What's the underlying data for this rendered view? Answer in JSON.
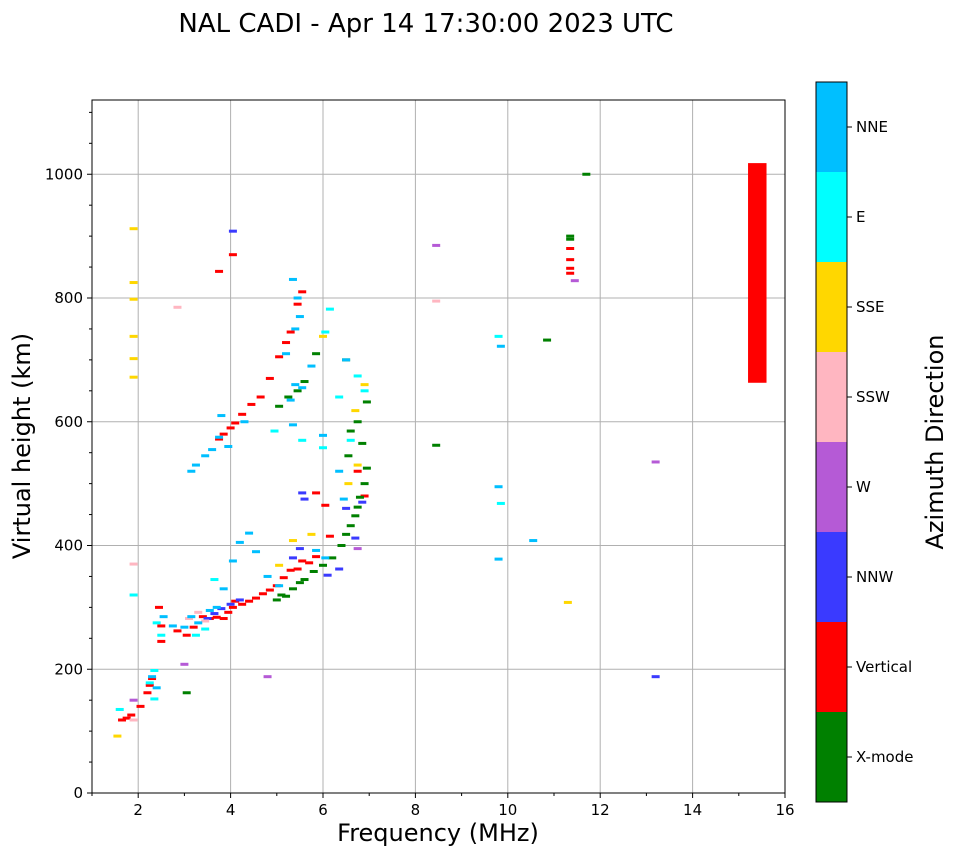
{
  "chart_data": {
    "type": "scatter",
    "title": "NAL CADI - Apr 14 17:30:00 2023 UTC",
    "xlabel": "Frequency (MHz)",
    "ylabel": "Virtual height (km)",
    "xlim": [
      1,
      16
    ],
    "ylim": [
      0,
      1120
    ],
    "xticks": [
      2,
      4,
      6,
      8,
      10,
      12,
      14,
      16
    ],
    "yticks": [
      0,
      200,
      400,
      600,
      800,
      1000
    ],
    "grid": true,
    "colorbar": {
      "label": "Azimuth Direction",
      "categories": [
        {
          "name": "X-mode",
          "color": "#008000"
        },
        {
          "name": "Vertical",
          "color": "#ff0000"
        },
        {
          "name": "NNW",
          "color": "#3a3aff"
        },
        {
          "name": "W",
          "color": "#b55ad6"
        },
        {
          "name": "SSW",
          "color": "#ffb6c1"
        },
        {
          "name": "SSE",
          "color": "#ffd700"
        },
        {
          "name": "E",
          "color": "#00ffff"
        },
        {
          "name": "NNE",
          "color": "#00bfff"
        }
      ]
    },
    "highlight_bar": {
      "x_range": [
        15.2,
        15.6
      ],
      "y_range": [
        663,
        1018
      ],
      "color": "#ff0000"
    },
    "series": [
      {
        "name": "Vertical",
        "points": [
          [
            1.65,
            118
          ],
          [
            1.75,
            121
          ],
          [
            1.85,
            126
          ],
          [
            2.05,
            140
          ],
          [
            2.2,
            162
          ],
          [
            2.25,
            174
          ],
          [
            2.3,
            185
          ],
          [
            2.45,
            300
          ],
          [
            2.5,
            270
          ],
          [
            2.5,
            245
          ],
          [
            2.85,
            262
          ],
          [
            3.05,
            255
          ],
          [
            3.2,
            268
          ],
          [
            3.4,
            285
          ],
          [
            3.55,
            282
          ],
          [
            3.7,
            284
          ],
          [
            3.85,
            282
          ],
          [
            3.95,
            292
          ],
          [
            4.05,
            300
          ],
          [
            4.1,
            310
          ],
          [
            4.25,
            305
          ],
          [
            4.4,
            310
          ],
          [
            4.55,
            315
          ],
          [
            4.7,
            322
          ],
          [
            4.85,
            328
          ],
          [
            5.0,
            335
          ],
          [
            5.15,
            348
          ],
          [
            5.3,
            360
          ],
          [
            5.45,
            362
          ],
          [
            5.55,
            375
          ],
          [
            5.7,
            372
          ],
          [
            5.85,
            382
          ],
          [
            3.75,
            572
          ],
          [
            3.85,
            580
          ],
          [
            4.0,
            590
          ],
          [
            4.1,
            598
          ],
          [
            4.25,
            612
          ],
          [
            4.45,
            628
          ],
          [
            4.65,
            640
          ],
          [
            4.85,
            670
          ],
          [
            5.05,
            705
          ],
          [
            5.2,
            728
          ],
          [
            5.3,
            745
          ],
          [
            5.45,
            790
          ],
          [
            5.55,
            810
          ],
          [
            3.75,
            843
          ],
          [
            4.05,
            870
          ],
          [
            5.85,
            485
          ],
          [
            6.05,
            465
          ],
          [
            6.15,
            415
          ],
          [
            6.75,
            520
          ],
          [
            6.9,
            480
          ],
          [
            11.35,
            880
          ],
          [
            11.35,
            862
          ],
          [
            11.35,
            848
          ],
          [
            11.35,
            840
          ]
        ]
      },
      {
        "name": "X-mode",
        "points": [
          [
            5.0,
            312
          ],
          [
            5.1,
            320
          ],
          [
            5.2,
            318
          ],
          [
            5.35,
            330
          ],
          [
            5.5,
            340
          ],
          [
            5.6,
            345
          ],
          [
            5.8,
            358
          ],
          [
            6.0,
            368
          ],
          [
            6.2,
            380
          ],
          [
            6.4,
            400
          ],
          [
            6.5,
            418
          ],
          [
            6.6,
            432
          ],
          [
            6.7,
            448
          ],
          [
            6.75,
            462
          ],
          [
            6.8,
            478
          ],
          [
            6.9,
            500
          ],
          [
            6.95,
            525
          ],
          [
            6.55,
            545
          ],
          [
            6.85,
            565
          ],
          [
            6.6,
            585
          ],
          [
            6.75,
            600
          ],
          [
            6.95,
            632
          ],
          [
            5.05,
            625
          ],
          [
            5.25,
            640
          ],
          [
            5.45,
            650
          ],
          [
            5.6,
            665
          ],
          [
            5.85,
            710
          ],
          [
            6.5,
            700
          ],
          [
            8.45,
            562
          ],
          [
            10.85,
            732
          ],
          [
            11.35,
            900
          ],
          [
            11.35,
            895
          ],
          [
            11.7,
            1000
          ],
          [
            3.05,
            162
          ]
        ]
      },
      {
        "name": "NNW",
        "points": [
          [
            3.5,
            282
          ],
          [
            3.65,
            290
          ],
          [
            3.8,
            298
          ],
          [
            4.0,
            305
          ],
          [
            4.2,
            312
          ],
          [
            5.35,
            380
          ],
          [
            5.5,
            395
          ],
          [
            5.55,
            485
          ],
          [
            5.6,
            475
          ],
          [
            6.1,
            352
          ],
          [
            6.35,
            362
          ],
          [
            6.5,
            460
          ],
          [
            6.7,
            412
          ],
          [
            6.85,
            470
          ],
          [
            4.05,
            908
          ],
          [
            13.2,
            188
          ]
        ]
      },
      {
        "name": "W",
        "points": [
          [
            3.0,
            208
          ],
          [
            4.8,
            188
          ],
          [
            8.45,
            885
          ],
          [
            11.45,
            828
          ],
          [
            13.2,
            535
          ],
          [
            6.75,
            395
          ],
          [
            1.9,
            150
          ]
        ]
      },
      {
        "name": "SSW",
        "points": [
          [
            3.1,
            282
          ],
          [
            3.3,
            292
          ],
          [
            3.45,
            278
          ],
          [
            8.45,
            795
          ],
          [
            2.85,
            785
          ],
          [
            1.9,
            370
          ],
          [
            1.9,
            118
          ]
        ]
      },
      {
        "name": "SSE",
        "points": [
          [
            1.55,
            92
          ],
          [
            1.9,
            912
          ],
          [
            1.9,
            825
          ],
          [
            1.9,
            798
          ],
          [
            1.9,
            738
          ],
          [
            1.9,
            702
          ],
          [
            1.9,
            672
          ],
          [
            5.35,
            408
          ],
          [
            5.75,
            418
          ],
          [
            5.05,
            368
          ],
          [
            6.0,
            738
          ],
          [
            6.7,
            618
          ],
          [
            6.9,
            660
          ],
          [
            11.3,
            308
          ],
          [
            6.55,
            500
          ],
          [
            6.75,
            530
          ]
        ]
      },
      {
        "name": "E",
        "points": [
          [
            1.6,
            135
          ],
          [
            2.25,
            178
          ],
          [
            2.35,
            152
          ],
          [
            2.4,
            275
          ],
          [
            2.5,
            255
          ],
          [
            3.25,
            255
          ],
          [
            3.45,
            265
          ],
          [
            6.05,
            745
          ],
          [
            6.15,
            782
          ],
          [
            6.75,
            674
          ],
          [
            6.9,
            650
          ],
          [
            6.35,
            640
          ],
          [
            6.6,
            570
          ],
          [
            9.8,
            738
          ],
          [
            9.85,
            468
          ],
          [
            6.0,
            558
          ],
          [
            4.95,
            585
          ],
          [
            5.55,
            570
          ],
          [
            1.9,
            320
          ],
          [
            2.35,
            198
          ],
          [
            3.65,
            345
          ]
        ]
      },
      {
        "name": "NNE",
        "points": [
          [
            2.3,
            188
          ],
          [
            2.4,
            170
          ],
          [
            2.55,
            285
          ],
          [
            2.75,
            270
          ],
          [
            3.0,
            268
          ],
          [
            3.15,
            285
          ],
          [
            3.3,
            275
          ],
          [
            3.55,
            295
          ],
          [
            3.7,
            300
          ],
          [
            3.85,
            330
          ],
          [
            4.05,
            375
          ],
          [
            4.2,
            405
          ],
          [
            4.4,
            420
          ],
          [
            4.55,
            390
          ],
          [
            4.8,
            350
          ],
          [
            5.05,
            335
          ],
          [
            3.15,
            520
          ],
          [
            3.25,
            530
          ],
          [
            3.45,
            545
          ],
          [
            3.6,
            555
          ],
          [
            3.75,
            575
          ],
          [
            3.95,
            560
          ],
          [
            3.8,
            610
          ],
          [
            4.3,
            600
          ],
          [
            5.3,
            635
          ],
          [
            5.4,
            660
          ],
          [
            5.55,
            655
          ],
          [
            5.75,
            690
          ],
          [
            5.2,
            710
          ],
          [
            5.4,
            750
          ],
          [
            5.5,
            770
          ],
          [
            5.35,
            830
          ],
          [
            5.45,
            800
          ],
          [
            6.05,
            380
          ],
          [
            5.85,
            392
          ],
          [
            6.45,
            475
          ],
          [
            6.35,
            520
          ],
          [
            6.0,
            578
          ],
          [
            5.35,
            595
          ],
          [
            9.85,
            722
          ],
          [
            9.8,
            495
          ],
          [
            9.8,
            378
          ],
          [
            10.55,
            408
          ],
          [
            6.5,
            700
          ]
        ]
      }
    ]
  }
}
